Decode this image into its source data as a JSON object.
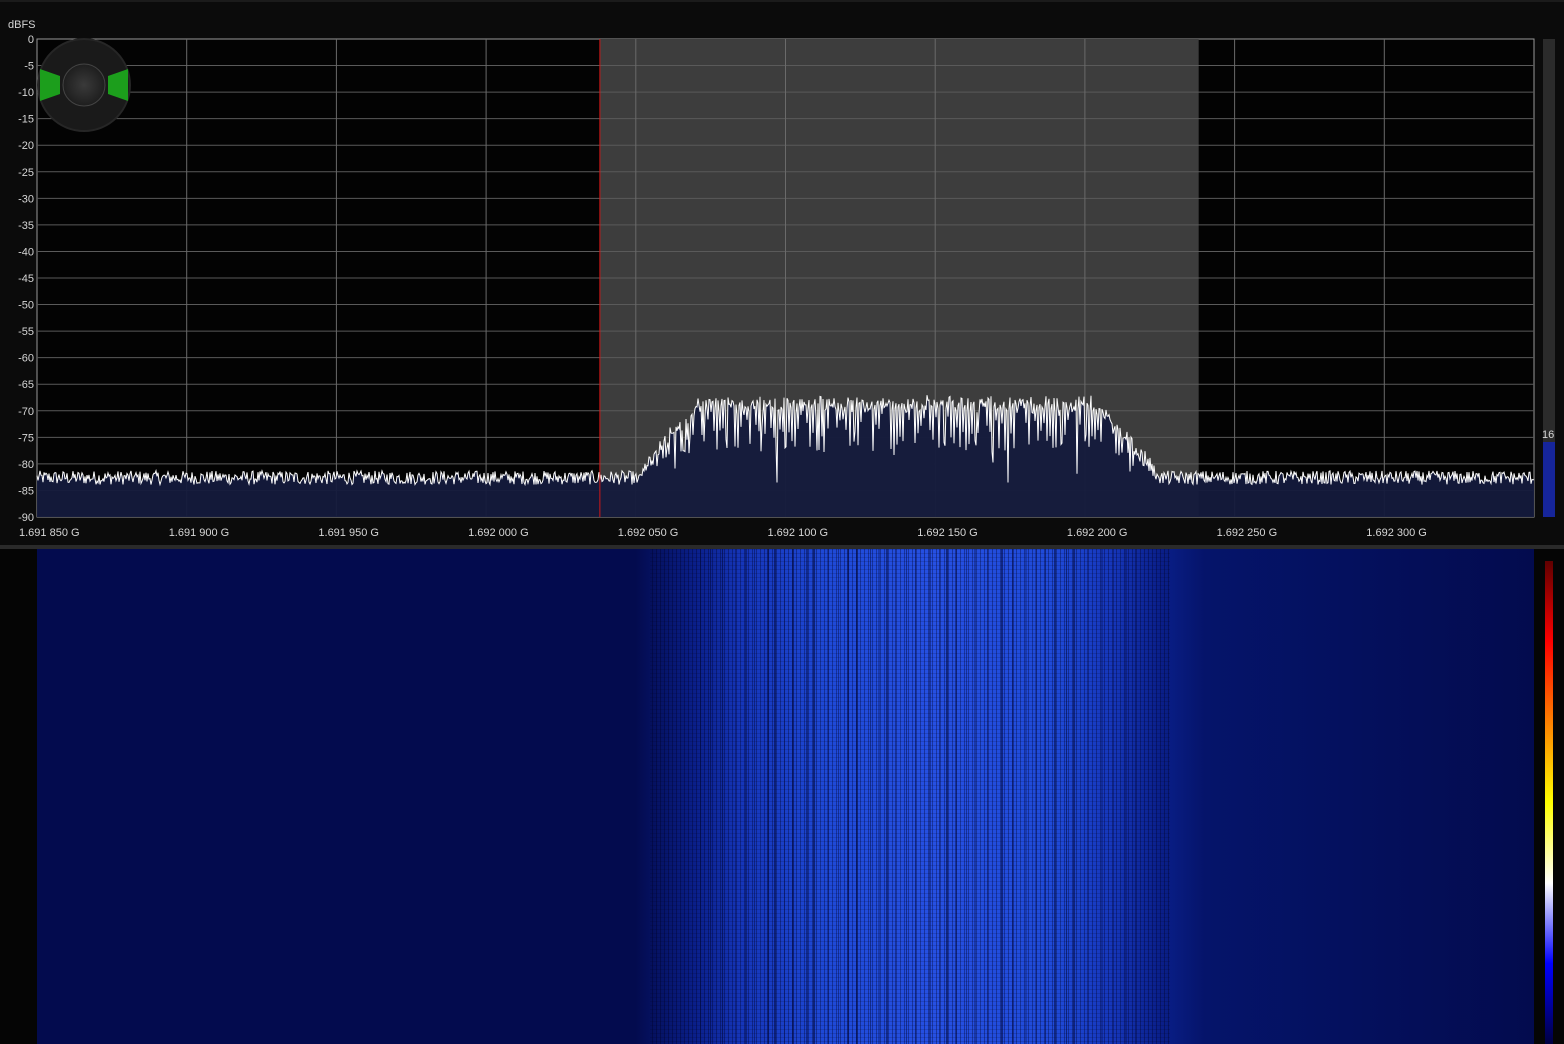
{
  "spectrum": {
    "y_unit": "dBFS",
    "y_ticks": [
      "0",
      "-5",
      "-10",
      "-15",
      "-20",
      "-25",
      "-30",
      "-35",
      "-40",
      "-45",
      "-50",
      "-55",
      "-60",
      "-65",
      "-70",
      "-75",
      "-80",
      "-85",
      "-90"
    ],
    "x_ticks": [
      "1.691 850 G",
      "1.691 900 G",
      "1.691 950 G",
      "1.692 000 G",
      "1.692 050 G",
      "1.692 100 G",
      "1.692 150 G",
      "1.692 200 G",
      "1.692 250 G",
      "1.692 300 G"
    ],
    "y_range": [
      -90,
      0
    ],
    "x_range_hz": [
      1691850000,
      1692350000
    ],
    "filter_band_hz": [
      1692038000,
      1692238000
    ],
    "vfo_hz": 1692038000,
    "noise_floor_dbfs": -82,
    "signal_peak_dbfs": -67,
    "signal_band_hz": [
      1692050000,
      1692225000
    ],
    "trace_color": "#ffffff",
    "fill_color": "#141a3c",
    "filter_color": "#3d3d3d",
    "vfo_color": "#d01818",
    "grid": true
  },
  "zoom_widget": {
    "accent_color": "#1c9e1c",
    "icon": "zoom-dial-icon"
  },
  "level_meter": {
    "value": "16",
    "fill_color": "#16259a"
  },
  "waterfall": {
    "base_color": "#030b4e",
    "signal_color": "#1f4ad8",
    "palette": [
      "#000040",
      "#0000ff",
      "#ffffff",
      "#ffff00",
      "#ff8000",
      "#ff0000",
      "#600000"
    ]
  }
}
